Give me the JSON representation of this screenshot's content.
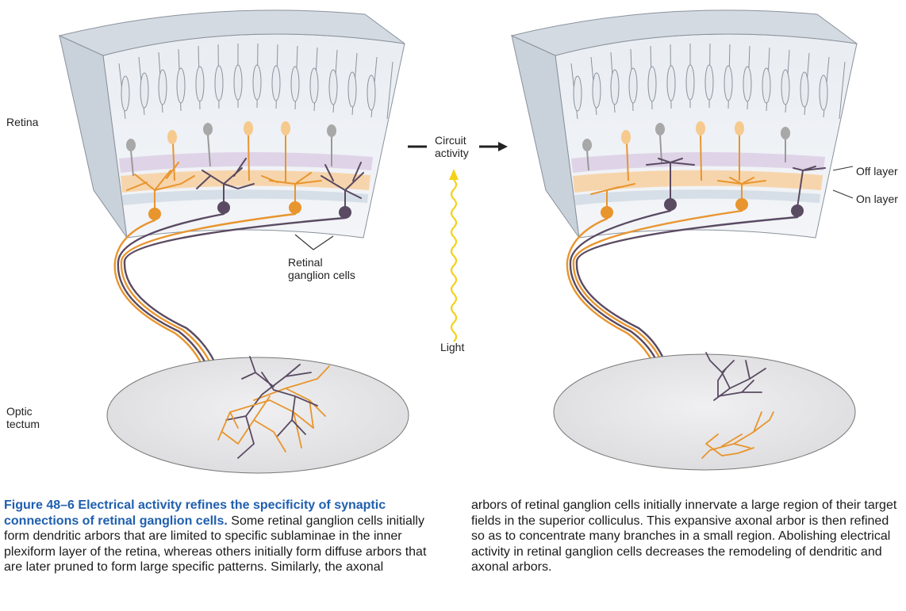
{
  "labels": {
    "retina": "Retina",
    "optic_tectum": "Optic\ntectum",
    "retinal_ganglion_cells": "Retinal\nganglion cells",
    "circuit_activity": "Circuit\nactivity",
    "light": "Light",
    "off_layer": "Off layer",
    "on_layer": "On layer"
  },
  "caption": {
    "figure_number": "Figure 48–6",
    "title": "Electrical activity refines the specificity of synaptic connections of retinal ganglion cells.",
    "body_left": "Some retinal ganglion cells initially form dendritic arbors that are limited to specific sublaminae in the inner plexiform layer of the retina, whereas others initially form diffuse arbors that are later pruned to form large specific patterns. Similarly, the axonal",
    "body_right": "arbors of retinal ganglion cells initially innervate a large region of their target fields in the superior colliculus. This expansive axonal arbor is then refined so as to concentrate many branches in a small region. Abolishing electrical activity in retinal ganglion cells decreases the remodeling of dendritic and axonal arbors."
  },
  "colors": {
    "orange": "#e8952e",
    "purple": "#5a4a62",
    "light_yellow": "#f4d21a",
    "retina_fill": "#dde3ea",
    "tectum_fill": "#e6e6e8",
    "caption_blue": "#1f5fae"
  }
}
